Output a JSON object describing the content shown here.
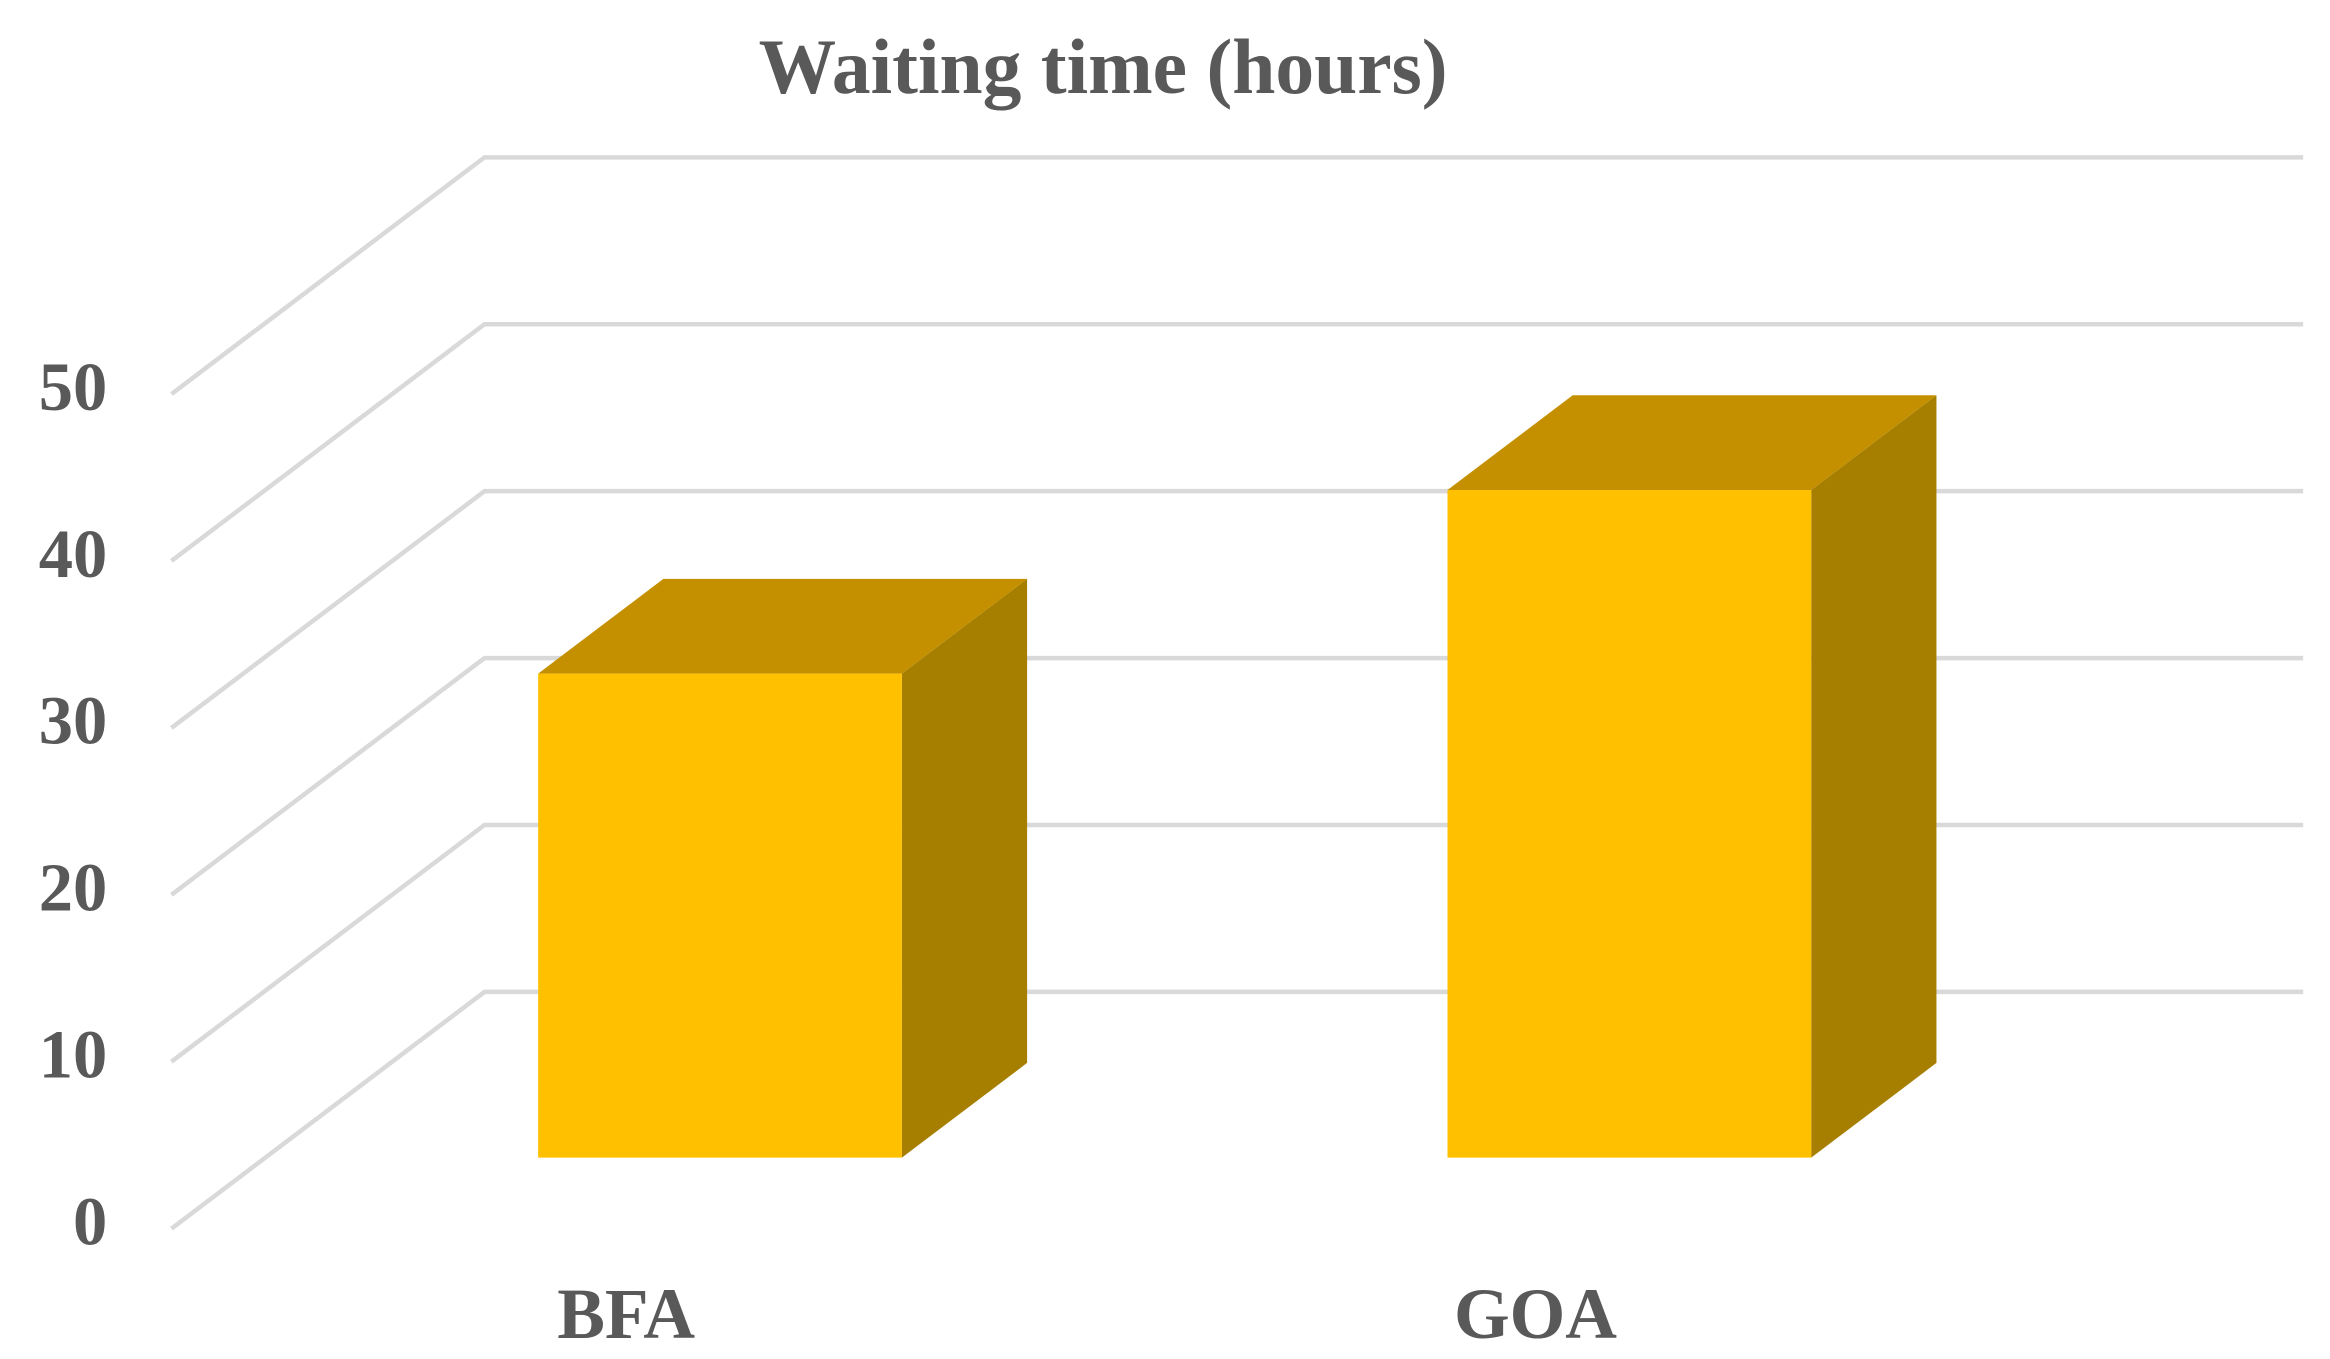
{
  "chart_data": {
    "type": "bar3d",
    "title": "Waiting time (hours)",
    "categories": [
      "BFA",
      "GOA"
    ],
    "values": [
      29,
      40
    ],
    "color": "#ffc000",
    "ylim": [
      0,
      50
    ],
    "yticks": [
      0,
      10,
      20,
      30,
      40,
      50
    ],
    "grid": true
  }
}
